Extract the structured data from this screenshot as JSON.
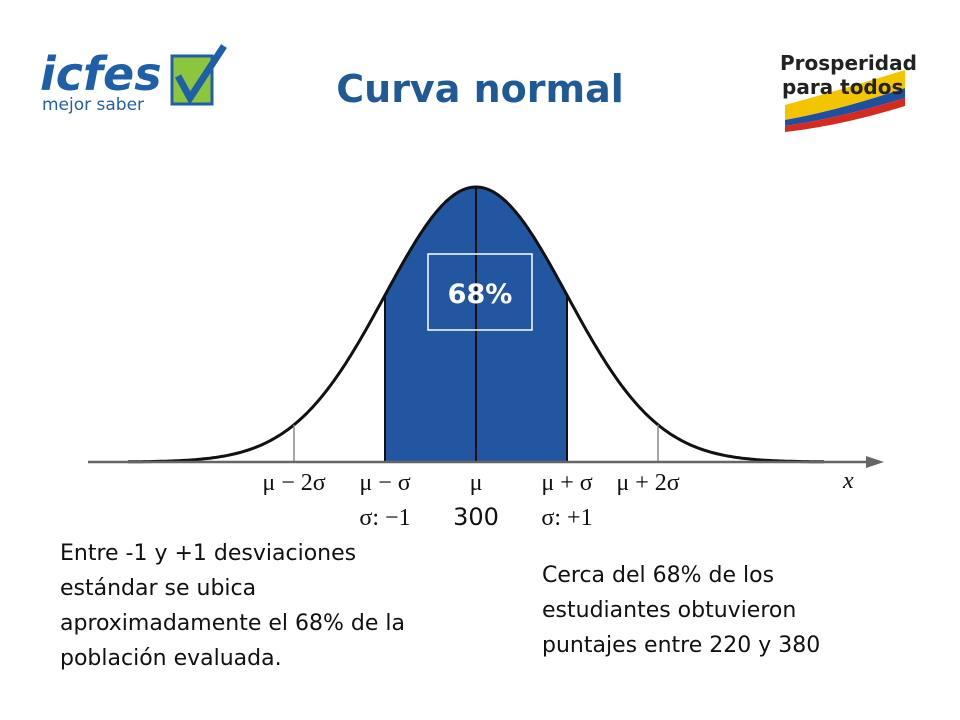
{
  "header": {
    "title": "Curva normal",
    "left_logo": {
      "name": "icfes",
      "tagline": "mejor saber"
    },
    "right_logo": {
      "line1": "Prosperidad",
      "line2": "para todos"
    }
  },
  "diagram": {
    "area_label": "68%",
    "axis_labels": [
      "μ − 2σ",
      "μ − σ",
      "μ",
      "μ + σ",
      "μ + 2σ"
    ],
    "axis_name": "x",
    "sub_labels": [
      "σ: −1",
      "300",
      "σ: +1"
    ]
  },
  "notes": [
    {
      "lines": [
        "Entre -1 y +1 desviaciones",
        "estándar se ubica",
        "aproximadamente el 68% de la",
        "población evaluada."
      ]
    },
    {
      "lines": [
        "Cerca del 68% de los",
        "estudiantes obtuvieron",
        "puntajes entre 220 y 380"
      ]
    }
  ]
}
